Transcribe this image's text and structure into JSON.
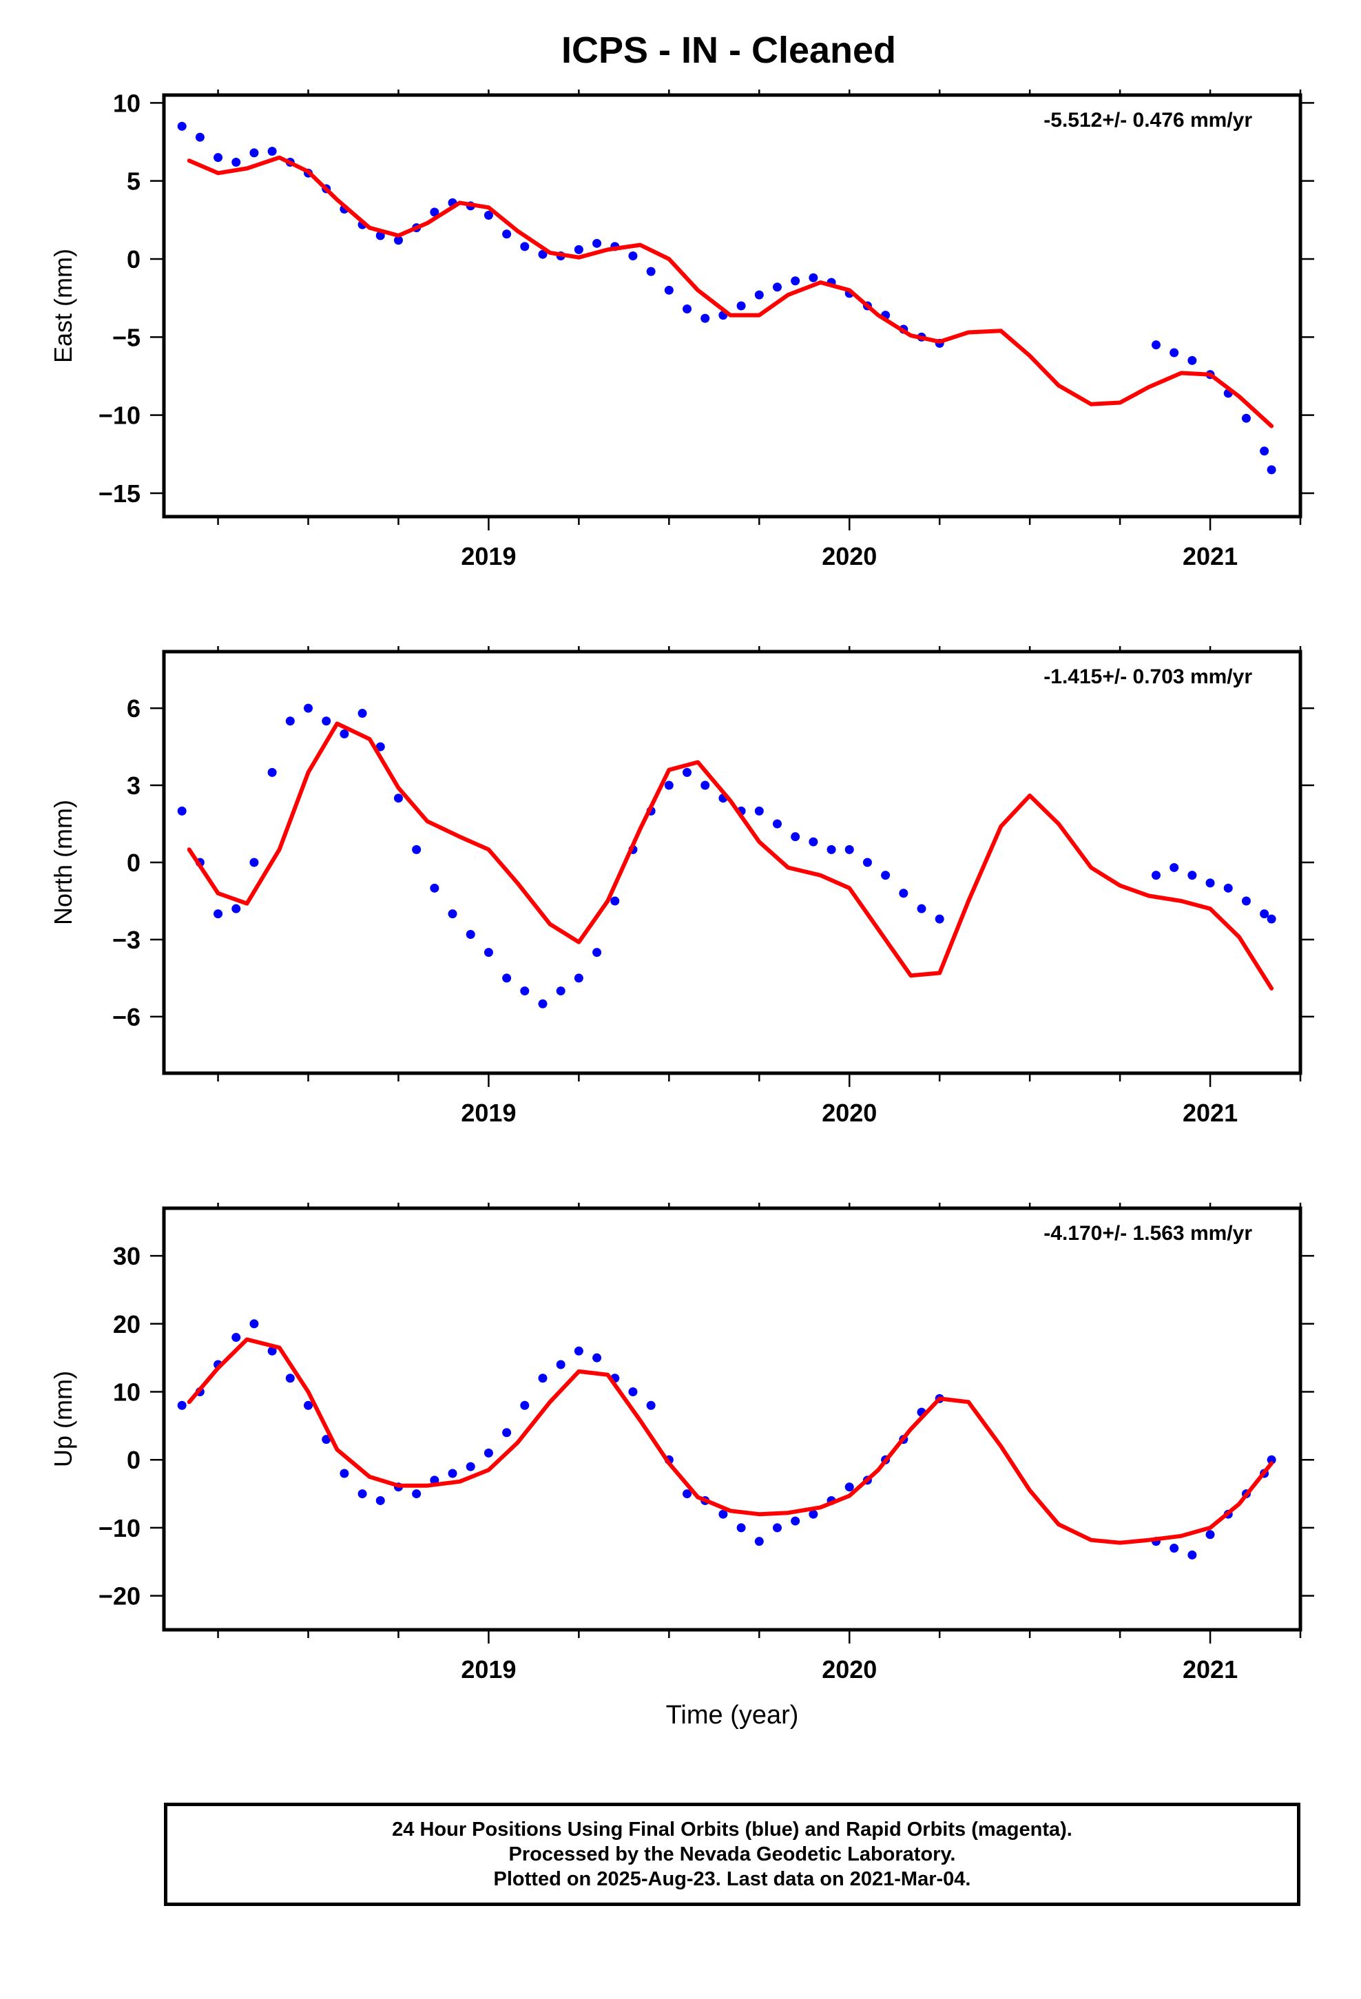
{
  "figure": {
    "title": "ICPS  - IN - Cleaned",
    "xlabel": "Time (year)",
    "footer_lines": [
      "24 Hour Positions Using Final Orbits (blue) and Rapid Orbits (magenta).",
      "Processed by the Nevada Geodetic Laboratory.",
      "Plotted on 2025-Aug-23. Last data on 2021-Mar-04."
    ],
    "colors": {
      "points": "#0000ff",
      "model": "#ff0000",
      "axes": "#000000"
    }
  },
  "chart_data": [
    {
      "type": "scatter",
      "ylabel": "East (mm)",
      "rate_label": "-5.512+/- 0.476 mm/yr",
      "xlim": [
        2018.1,
        2021.25
      ],
      "ylim": [
        -16.5,
        10.5
      ],
      "xticks": [
        2019,
        2020,
        2021
      ],
      "yticks": [
        -15,
        -10,
        -5,
        0,
        5,
        10
      ],
      "series": [
        {
          "role": "observations",
          "color": "#0000ff",
          "x": [
            2018.15,
            2018.2,
            2018.25,
            2018.3,
            2018.35,
            2018.4,
            2018.45,
            2018.5,
            2018.55,
            2018.6,
            2018.65,
            2018.7,
            2018.75,
            2018.8,
            2018.85,
            2018.9,
            2018.95,
            2019.0,
            2019.05,
            2019.1,
            2019.15,
            2019.2,
            2019.25,
            2019.3,
            2019.35,
            2019.4,
            2019.45,
            2019.5,
            2019.55,
            2019.6,
            2019.65,
            2019.7,
            2019.75,
            2019.8,
            2019.85,
            2019.9,
            2019.95,
            2020.0,
            2020.05,
            2020.1,
            2020.15,
            2020.2,
            2020.25,
            2020.85,
            2020.9,
            2020.95,
            2021.0,
            2021.05,
            2021.1,
            2021.15,
            2021.17
          ],
          "y": [
            8.5,
            7.8,
            6.5,
            6.2,
            6.8,
            6.9,
            6.2,
            5.5,
            4.5,
            3.2,
            2.2,
            1.5,
            1.2,
            2.0,
            3.0,
            3.6,
            3.4,
            2.8,
            1.6,
            0.8,
            0.3,
            0.2,
            0.6,
            1.0,
            0.8,
            0.2,
            -0.8,
            -2.0,
            -3.2,
            -3.8,
            -3.6,
            -3.0,
            -2.3,
            -1.8,
            -1.4,
            -1.2,
            -1.5,
            -2.2,
            -3.0,
            -3.6,
            -4.5,
            -5.0,
            -5.4,
            -5.5,
            -6.0,
            -6.5,
            -7.4,
            -8.6,
            -10.2,
            -12.3,
            -13.5
          ]
        },
        {
          "role": "model",
          "color": "#ff0000",
          "x": [
            2018.17,
            2018.25,
            2018.33,
            2018.42,
            2018.5,
            2018.58,
            2018.67,
            2018.75,
            2018.83,
            2018.92,
            2019.0,
            2019.08,
            2019.17,
            2019.25,
            2019.33,
            2019.42,
            2019.5,
            2019.58,
            2019.67,
            2019.75,
            2019.83,
            2019.92,
            2020.0,
            2020.08,
            2020.17,
            2020.25,
            2020.33,
            2020.42,
            2020.5,
            2020.58,
            2020.67,
            2020.75,
            2020.83,
            2020.92,
            2021.0,
            2021.08,
            2021.17
          ],
          "y": [
            6.3,
            5.5,
            5.8,
            6.5,
            5.6,
            3.8,
            2.0,
            1.5,
            2.3,
            3.6,
            3.3,
            1.8,
            0.4,
            0.1,
            0.6,
            0.9,
            0.0,
            -2.0,
            -3.6,
            -3.6,
            -2.3,
            -1.5,
            -2.0,
            -3.6,
            -4.9,
            -5.3,
            -4.7,
            -4.6,
            -6.2,
            -8.1,
            -9.3,
            -9.2,
            -8.2,
            -7.3,
            -7.4,
            -8.8,
            -10.7
          ]
        }
      ]
    },
    {
      "type": "scatter",
      "ylabel": "North (mm)",
      "rate_label": "-1.415+/- 0.703 mm/yr",
      "xlim": [
        2018.1,
        2021.25
      ],
      "ylim": [
        -8.2,
        8.2
      ],
      "xticks": [
        2019,
        2020,
        2021
      ],
      "yticks": [
        -6,
        -3,
        0,
        3,
        6
      ],
      "series": [
        {
          "role": "observations",
          "color": "#0000ff",
          "x": [
            2018.15,
            2018.2,
            2018.25,
            2018.3,
            2018.35,
            2018.4,
            2018.45,
            2018.5,
            2018.55,
            2018.6,
            2018.65,
            2018.7,
            2018.75,
            2018.8,
            2018.85,
            2018.9,
            2018.95,
            2019.0,
            2019.05,
            2019.1,
            2019.15,
            2019.2,
            2019.25,
            2019.3,
            2019.35,
            2019.4,
            2019.45,
            2019.5,
            2019.55,
            2019.6,
            2019.65,
            2019.7,
            2019.75,
            2019.8,
            2019.85,
            2019.9,
            2019.95,
            2020.0,
            2020.05,
            2020.1,
            2020.15,
            2020.2,
            2020.25,
            2020.85,
            2020.9,
            2020.95,
            2021.0,
            2021.05,
            2021.1,
            2021.15,
            2021.17
          ],
          "y": [
            2.0,
            0.0,
            -2.0,
            -1.8,
            0.0,
            3.5,
            5.5,
            6.0,
            5.5,
            5.0,
            5.8,
            4.5,
            2.5,
            0.5,
            -1.0,
            -2.0,
            -2.8,
            -3.5,
            -4.5,
            -5.0,
            -5.5,
            -5.0,
            -4.5,
            -3.5,
            -1.5,
            0.5,
            2.0,
            3.0,
            3.5,
            3.0,
            2.5,
            2.0,
            2.0,
            1.5,
            1.0,
            0.8,
            0.5,
            0.5,
            0.0,
            -0.5,
            -1.2,
            -1.8,
            -2.2,
            -0.5,
            -0.2,
            -0.5,
            -0.8,
            -1.0,
            -1.5,
            -2.0,
            -2.2
          ]
        },
        {
          "role": "model",
          "color": "#ff0000",
          "x": [
            2018.17,
            2018.25,
            2018.33,
            2018.42,
            2018.5,
            2018.58,
            2018.67,
            2018.75,
            2018.83,
            2018.92,
            2019.0,
            2019.08,
            2019.17,
            2019.25,
            2019.33,
            2019.42,
            2019.5,
            2019.58,
            2019.67,
            2019.75,
            2019.83,
            2019.92,
            2020.0,
            2020.08,
            2020.17,
            2020.25,
            2020.33,
            2020.42,
            2020.5,
            2020.58,
            2020.67,
            2020.75,
            2020.83,
            2020.92,
            2021.0,
            2021.08,
            2021.17
          ],
          "y": [
            0.5,
            -1.2,
            -1.6,
            0.5,
            3.5,
            5.4,
            4.8,
            2.9,
            1.6,
            1.0,
            0.5,
            -0.8,
            -2.4,
            -3.1,
            -1.5,
            1.3,
            3.6,
            3.9,
            2.4,
            0.8,
            -0.2,
            -0.5,
            -1.0,
            -2.6,
            -4.4,
            -4.3,
            -1.5,
            1.4,
            2.6,
            1.5,
            -0.2,
            -0.9,
            -1.3,
            -1.5,
            -1.8,
            -2.9,
            -4.9
          ]
        }
      ]
    },
    {
      "type": "scatter",
      "ylabel": "Up (mm)",
      "rate_label": "-4.170+/- 1.563 mm/yr",
      "xlim": [
        2018.1,
        2021.25
      ],
      "ylim": [
        -25,
        37
      ],
      "xticks": [
        2019,
        2020,
        2021
      ],
      "yticks": [
        -20,
        -10,
        0,
        10,
        20,
        30
      ],
      "series": [
        {
          "role": "observations",
          "color": "#0000ff",
          "x": [
            2018.15,
            2018.2,
            2018.25,
            2018.3,
            2018.35,
            2018.4,
            2018.45,
            2018.5,
            2018.55,
            2018.6,
            2018.65,
            2018.7,
            2018.75,
            2018.8,
            2018.85,
            2018.9,
            2018.95,
            2019.0,
            2019.05,
            2019.1,
            2019.15,
            2019.2,
            2019.25,
            2019.3,
            2019.35,
            2019.4,
            2019.45,
            2019.5,
            2019.55,
            2019.6,
            2019.65,
            2019.7,
            2019.75,
            2019.8,
            2019.85,
            2019.9,
            2019.95,
            2020.0,
            2020.05,
            2020.1,
            2020.15,
            2020.2,
            2020.25,
            2020.85,
            2020.9,
            2020.95,
            2021.0,
            2021.05,
            2021.1,
            2021.15,
            2021.17
          ],
          "y": [
            8.0,
            10.0,
            14.0,
            18.0,
            20.0,
            16.0,
            12.0,
            8.0,
            3.0,
            -2.0,
            -5.0,
            -6.0,
            -4.0,
            -5.0,
            -3.0,
            -2.0,
            -1.0,
            1.0,
            4.0,
            8.0,
            12.0,
            14.0,
            16.0,
            15.0,
            12.0,
            10.0,
            8.0,
            0.0,
            -5.0,
            -6.0,
            -8.0,
            -10.0,
            -12.0,
            -10.0,
            -9.0,
            -8.0,
            -6.0,
            -4.0,
            -3.0,
            0.0,
            3.0,
            7.0,
            9.0,
            -12.0,
            -13.0,
            -14.0,
            -11.0,
            -8.0,
            -5.0,
            -2.0,
            0.0
          ]
        },
        {
          "role": "model",
          "color": "#ff0000",
          "x": [
            2018.17,
            2018.25,
            2018.33,
            2018.42,
            2018.5,
            2018.58,
            2018.67,
            2018.75,
            2018.83,
            2018.92,
            2019.0,
            2019.08,
            2019.17,
            2019.25,
            2019.33,
            2019.42,
            2019.5,
            2019.58,
            2019.67,
            2019.75,
            2019.83,
            2019.92,
            2020.0,
            2020.08,
            2020.17,
            2020.25,
            2020.33,
            2020.42,
            2020.5,
            2020.58,
            2020.67,
            2020.75,
            2020.83,
            2020.92,
            2021.0,
            2021.08,
            2021.17
          ],
          "y": [
            8.5,
            13.5,
            17.7,
            16.5,
            10.0,
            1.5,
            -2.5,
            -3.8,
            -3.8,
            -3.2,
            -1.5,
            2.5,
            8.5,
            13.0,
            12.5,
            5.8,
            -0.5,
            -5.5,
            -7.5,
            -8.0,
            -7.8,
            -7.0,
            -5.3,
            -1.5,
            4.5,
            9.0,
            8.5,
            2.0,
            -4.5,
            -9.5,
            -11.8,
            -12.2,
            -11.8,
            -11.2,
            -10.0,
            -6.5,
            -0.5
          ]
        }
      ]
    }
  ]
}
